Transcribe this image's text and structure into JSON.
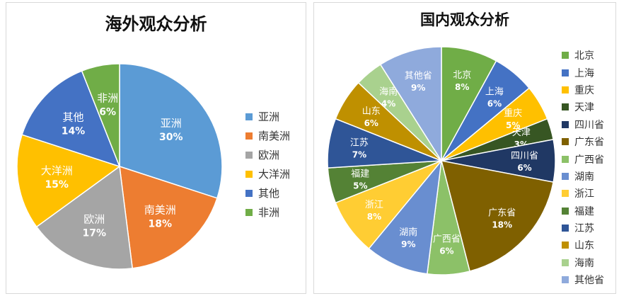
{
  "chart_data": [
    {
      "type": "pie",
      "title": "海外观众分析",
      "legend": "right",
      "slices": [
        {
          "label": "亚洲",
          "value": 30,
          "display": "30%",
          "color": "#5b9bd5"
        },
        {
          "label": "南美洲",
          "value": 18,
          "display": "18%",
          "color": "#ed7d31"
        },
        {
          "label": "欧洲",
          "value": 17,
          "display": "17%",
          "color": "#a5a5a5"
        },
        {
          "label": "大洋洲",
          "value": 15,
          "display": "15%",
          "color": "#ffc000"
        },
        {
          "label": "其他",
          "value": 14,
          "display": "14%",
          "color": "#4472c4"
        },
        {
          "label": "非洲",
          "value": 6,
          "display": "6%",
          "color": "#70ad47"
        }
      ]
    },
    {
      "type": "pie",
      "title": "国内观众分析",
      "legend": "right",
      "slices": [
        {
          "label": "北京",
          "value": 8,
          "display": "8%",
          "color": "#70ad47"
        },
        {
          "label": "上海",
          "value": 6,
          "display": "6%",
          "color": "#4472c4"
        },
        {
          "label": "重庆",
          "value": 5,
          "display": "5%",
          "color": "#ffc000"
        },
        {
          "label": "天津",
          "value": 3,
          "display": "3%",
          "color": "#375623"
        },
        {
          "label": "四川省",
          "value": 6,
          "display": "6%",
          "color": "#203864"
        },
        {
          "label": "广东省",
          "value": 18,
          "display": "18%",
          "color": "#7f6000"
        },
        {
          "label": "广西省",
          "value": 6,
          "display": "6%",
          "color": "#8cc168"
        },
        {
          "label": "湖南",
          "value": 9,
          "display": "9%",
          "color": "#698ed0"
        },
        {
          "label": "浙江",
          "value": 8,
          "display": "8%",
          "color": "#ffcd33"
        },
        {
          "label": "福建",
          "value": 5,
          "display": "5%",
          "color": "#548235"
        },
        {
          "label": "江苏",
          "value": 7,
          "display": "7%",
          "color": "#2f5597"
        },
        {
          "label": "山东",
          "value": 6,
          "display": "6%",
          "color": "#bf9000"
        },
        {
          "label": "海南",
          "value": 4,
          "display": "4%",
          "color": "#a9d18e"
        },
        {
          "label": "其他省",
          "value": 9,
          "display": "9%",
          "color": "#8faadc"
        }
      ]
    }
  ]
}
